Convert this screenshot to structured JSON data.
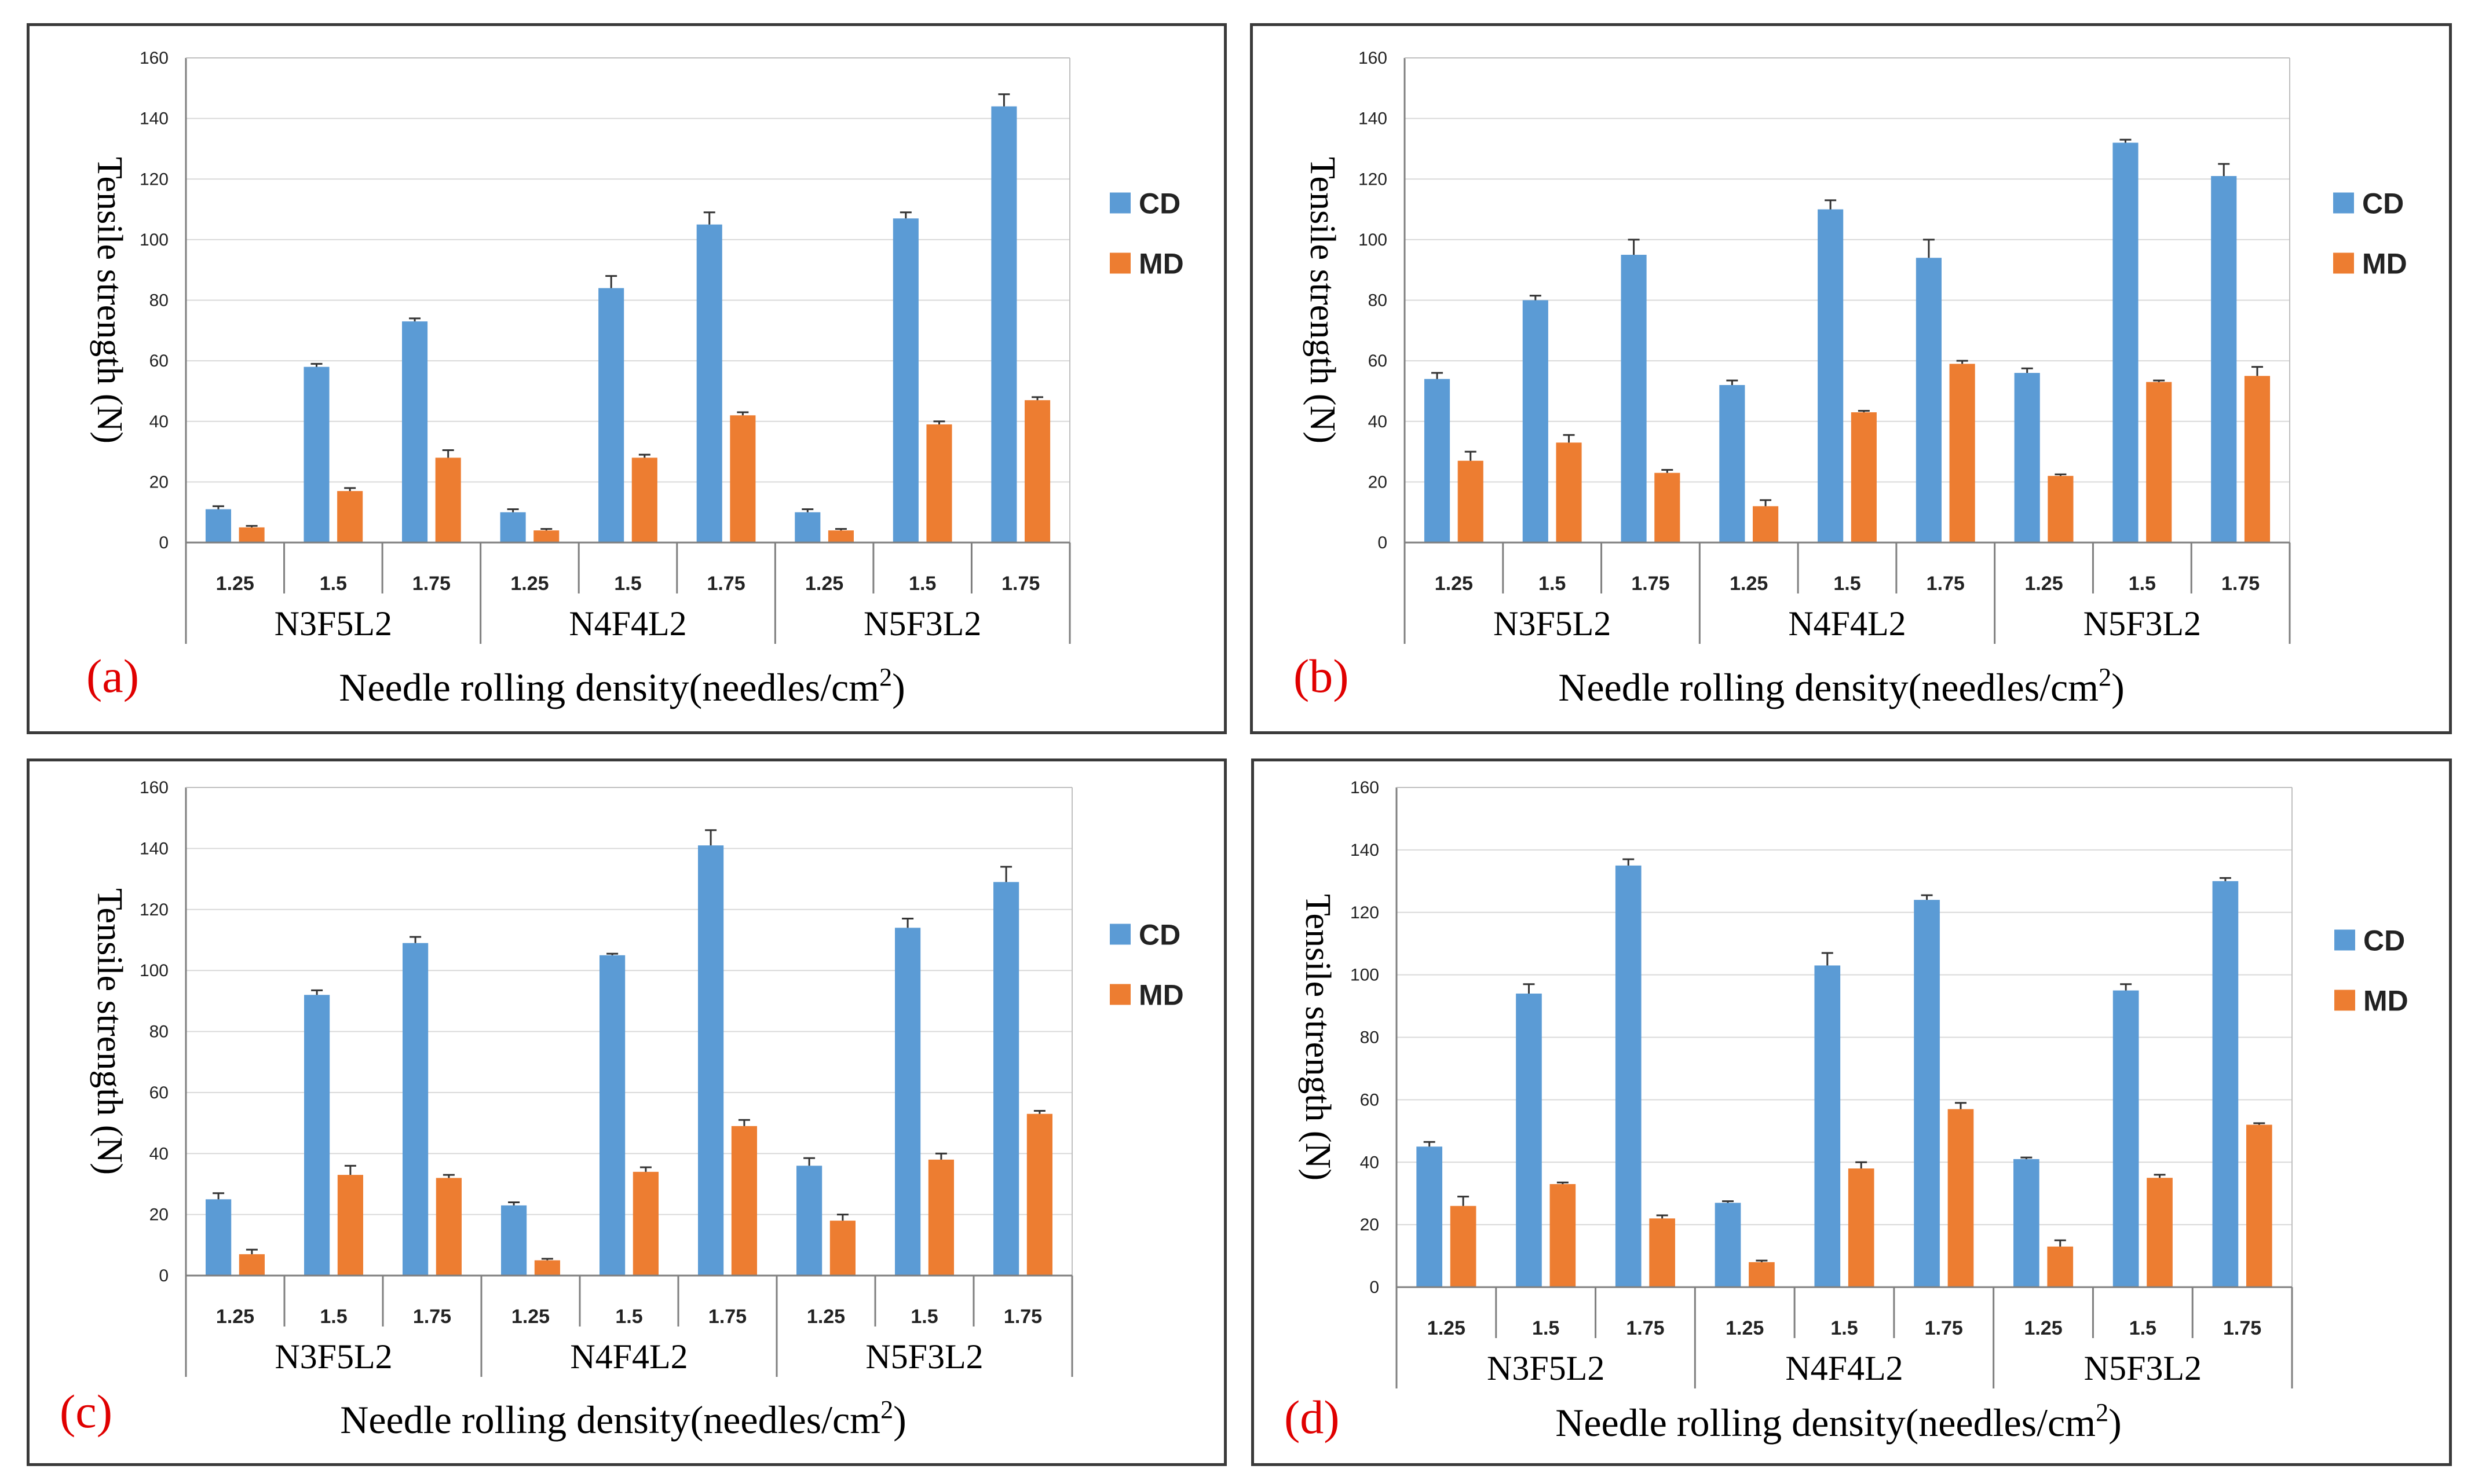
{
  "chart_data": [
    {
      "type": "bar",
      "panel_label": "(a)",
      "ylabel": "Tensile strength (N)",
      "xlabel": "Needle rolling density(needles/cm",
      "xlabel_sup": "2",
      "xlabel_end": ")",
      "ylim": [
        0,
        160
      ],
      "yticks": [
        "0",
        "20",
        "40",
        "60",
        "80",
        "100",
        "120",
        "140",
        "160"
      ],
      "groups": [
        "N3F5L2",
        "N4F4L2",
        "N5F3L2"
      ],
      "categories": [
        "1.25",
        "1.5",
        "1.75",
        "1.25",
        "1.5",
        "1.75",
        "1.25",
        "1.5",
        "1.75"
      ],
      "series": [
        {
          "name": "CD",
          "color": "#5b9bd5",
          "values": [
            11,
            58,
            73,
            10,
            84,
            105,
            10,
            107,
            144
          ],
          "errors": [
            1,
            1,
            1,
            1,
            4,
            4,
            1,
            2,
            4
          ]
        },
        {
          "name": "MD",
          "color": "#ed7d31",
          "values": [
            5,
            17,
            28,
            4,
            28,
            42,
            4,
            39,
            47
          ],
          "errors": [
            0.5,
            1,
            2.5,
            0.5,
            1,
            1,
            0.5,
            1,
            1
          ]
        }
      ]
    },
    {
      "type": "bar",
      "panel_label": "(b)",
      "ylabel": "Tensile strength (N)",
      "xlabel": "Needle rolling density(needles/cm",
      "xlabel_sup": "2",
      "xlabel_end": ")",
      "ylim": [
        0,
        160
      ],
      "yticks": [
        "0",
        "20",
        "40",
        "60",
        "80",
        "100",
        "120",
        "140",
        "160"
      ],
      "groups": [
        "N3F5L2",
        "N4F4L2",
        "N5F3L2"
      ],
      "categories": [
        "1.25",
        "1.5",
        "1.75",
        "1.25",
        "1.5",
        "1.75",
        "1.25",
        "1.5",
        "1.75"
      ],
      "series": [
        {
          "name": "CD",
          "color": "#5b9bd5",
          "values": [
            54,
            80,
            95,
            52,
            110,
            94,
            56,
            132,
            121
          ],
          "errors": [
            2,
            1.5,
            5,
            1.5,
            3,
            6,
            1.5,
            1,
            4
          ]
        },
        {
          "name": "MD",
          "color": "#ed7d31",
          "values": [
            27,
            33,
            23,
            12,
            43,
            59,
            22,
            53,
            55
          ],
          "errors": [
            3,
            2.5,
            1,
            2,
            0.5,
            1,
            0.5,
            0.5,
            3
          ]
        }
      ]
    },
    {
      "type": "bar",
      "panel_label": "(c)",
      "ylabel": "Tensile strength (N)",
      "xlabel": "Needle rolling density(needles/cm",
      "xlabel_sup": "2",
      "xlabel_end": ")",
      "ylim": [
        0,
        160
      ],
      "yticks": [
        "0",
        "20",
        "40",
        "60",
        "80",
        "100",
        "120",
        "140",
        "160"
      ],
      "groups": [
        "N3F5L2",
        "N4F4L2",
        "N5F3L2"
      ],
      "categories": [
        "1.25",
        "1.5",
        "1.75",
        "1.25",
        "1.5",
        "1.75",
        "1.25",
        "1.5",
        "1.75"
      ],
      "series": [
        {
          "name": "CD",
          "color": "#5b9bd5",
          "values": [
            25,
            92,
            109,
            23,
            105,
            141,
            36,
            114,
            129
          ],
          "errors": [
            2,
            1.5,
            2,
            1,
            0.5,
            5,
            2.5,
            3,
            5
          ]
        },
        {
          "name": "MD",
          "color": "#ed7d31",
          "values": [
            7,
            33,
            32,
            5,
            34,
            49,
            18,
            38,
            53
          ],
          "errors": [
            1.5,
            3,
            1,
            0.5,
            1.5,
            2,
            2,
            2,
            1
          ]
        }
      ]
    },
    {
      "type": "bar",
      "panel_label": "(d)",
      "ylabel": "Tensile strength (N)",
      "xlabel": "Needle rolling density(needles/cm",
      "xlabel_sup": "2",
      "xlabel_end": ")",
      "ylim": [
        0,
        160
      ],
      "yticks": [
        "0",
        "20",
        "40",
        "60",
        "80",
        "100",
        "120",
        "140",
        "160"
      ],
      "groups": [
        "N3F5L2",
        "N4F4L2",
        "N5F3L2"
      ],
      "categories": [
        "1.25",
        "1.5",
        "1.75",
        "1.25",
        "1.5",
        "1.75",
        "1.25",
        "1.5",
        "1.75"
      ],
      "series": [
        {
          "name": "CD",
          "color": "#5b9bd5",
          "values": [
            45,
            94,
            135,
            27,
            103,
            124,
            41,
            95,
            130
          ],
          "errors": [
            1.5,
            3,
            2,
            0.5,
            4,
            1.5,
            0.5,
            2,
            1
          ]
        },
        {
          "name": "MD",
          "color": "#ed7d31",
          "values": [
            26,
            33,
            22,
            8,
            38,
            57,
            13,
            35,
            52
          ],
          "errors": [
            3,
            0.5,
            1,
            0.5,
            2,
            2,
            2,
            1,
            0.5
          ]
        }
      ]
    }
  ]
}
